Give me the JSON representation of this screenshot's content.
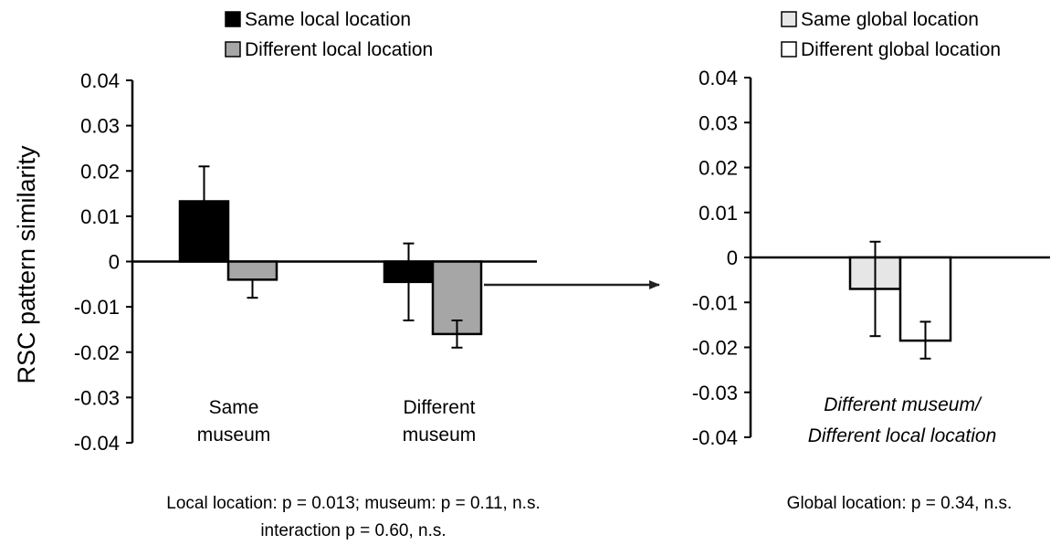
{
  "chart_data": [
    {
      "type": "bar",
      "ylabel": "RSC pattern similarity",
      "ylim": [
        -0.04,
        0.04
      ],
      "yticks": [
        "0.04",
        "0.03",
        "0.02",
        "0.01",
        "0",
        "-0.01",
        "-0.02",
        "-0.03",
        "-0.04"
      ],
      "categories": [
        [
          "Same",
          "museum"
        ],
        [
          "Different",
          "museum"
        ]
      ],
      "series": [
        {
          "name": "Same local location",
          "color": "#000000",
          "values": [
            0.0133,
            -0.0045
          ],
          "err_hi": [
            0.021,
            0.004
          ],
          "err_lo": [
            0.0133,
            -0.013
          ]
        },
        {
          "name": "Different local location",
          "color": "#a6a6a6",
          "values": [
            -0.004,
            -0.016
          ],
          "err_hi": [
            -0.004,
            -0.013
          ],
          "err_lo": [
            -0.008,
            -0.019
          ]
        }
      ],
      "legend_position": "top",
      "footnote": [
        "Local location: p = 0.013;  museum: p = 0.11, n.s.",
        "interaction p = 0.60, n.s."
      ]
    },
    {
      "type": "bar",
      "ylim": [
        -0.04,
        0.04
      ],
      "yticks": [
        "0.04",
        "0.03",
        "0.02",
        "0.01",
        "0",
        "-0.01",
        "-0.02",
        "-0.03",
        "-0.04"
      ],
      "categories": [
        [
          "Different museum/",
          "Different local location"
        ]
      ],
      "series": [
        {
          "name": "Same global location",
          "color": "#e6e6e6",
          "values": [
            -0.007
          ],
          "err_hi": [
            0.0035
          ],
          "err_lo": [
            -0.0175
          ]
        },
        {
          "name": "Different global location",
          "color": "#ffffff",
          "values": [
            -0.0185
          ],
          "err_hi": [
            -0.0143
          ],
          "err_lo": [
            -0.0225
          ]
        }
      ],
      "legend_position": "top",
      "footnote": [
        "Global location: p = 0.34, n.s."
      ]
    }
  ]
}
